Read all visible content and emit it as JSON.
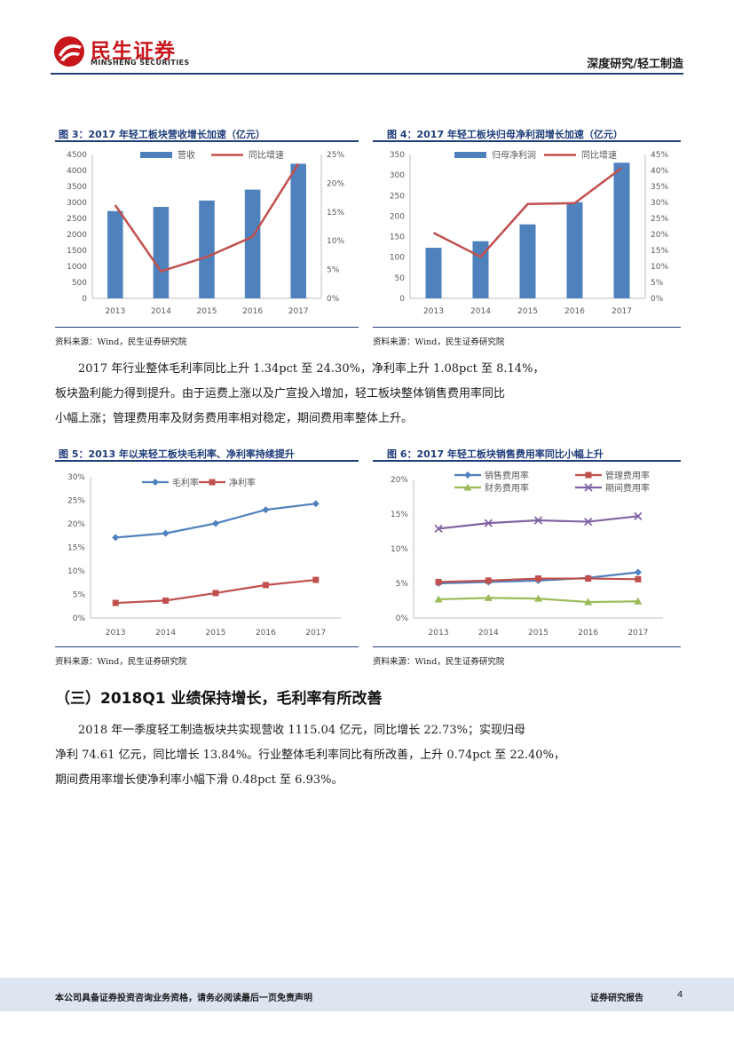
{
  "header": {
    "logo_cn": "民生证券",
    "logo_en": "MINSHENG SECURITIES",
    "section": "深度研究/轻工制造"
  },
  "figures": {
    "fig3": {
      "title": "图 3：2017 年轻工板块营收增长加速（亿元）",
      "source": "资料来源：Wind，民生证券研究院"
    },
    "fig4": {
      "title": "图 4：2017 年轻工板块归母净利润增长加速（亿元）",
      "source": "资料来源：Wind，民生证券研究院"
    },
    "fig5": {
      "title": "图 5：2013 年以来轻工板块毛利率、净利率持续提升",
      "source": "资料来源：Wind，民生证券研究院"
    },
    "fig6": {
      "title": "图 6：2017 年轻工板块销售费用率同比小幅上升",
      "source": "资料来源：Wind，民生证券研究院"
    }
  },
  "paragraph1": [
    "2017 年行业整体毛利率同比上升 1.34pct 至 24.30%，净利率上升 1.08pct 至 8.14%，",
    "板块盈利能力得到提升。由于运费上涨以及广宣投入增加，轻工板块整体销售费用率同比",
    "小幅上涨；管理费用率及财务费用率相对稳定，期间费用率整体上升。"
  ],
  "section_heading": "（三）2018Q1 业绩保持增长，毛利率有所改善",
  "paragraph2": [
    "2018 年一季度轻工制造板块共实现营收 1115.04 亿元，同比增长 22.73%；实现归母",
    "净利 74.61 亿元，同比增长 13.84%。行业整体毛利率同比有所改善，上升 0.74pct 至 22.40%，",
    "期间费用率增长使净利率小幅下滑 0.48pct 至 6.93%。"
  ],
  "footer": {
    "disclaimer": "本公司具备证券投资咨询业务资格，请务必阅读最后一页免责声明",
    "report_type": "证券研究报告",
    "page": "4"
  },
  "colors": {
    "bar": "#4f81bd",
    "line_red": "#c0504d",
    "line_blue": "#4f81bd",
    "green": "#9bbb59",
    "purple": "#8064a2",
    "brand_red": "#c8161d",
    "navy": "#1f3d7a"
  },
  "chart_data": [
    {
      "id": "fig3",
      "type": "bar+line",
      "categories": [
        "2013",
        "2014",
        "2015",
        "2016",
        "2017"
      ],
      "series": [
        {
          "name": "营收",
          "type": "bar",
          "axis": "left",
          "values": [
            2730,
            2860,
            3060,
            3400,
            4210
          ]
        },
        {
          "name": "同比增速",
          "type": "line",
          "axis": "right",
          "values": [
            16.2,
            4.7,
            7.2,
            10.7,
            23.4
          ]
        }
      ],
      "left_axis": {
        "min": 0,
        "max": 4500,
        "ticks": [
          "0",
          "500",
          "1000",
          "1500",
          "2000",
          "2500",
          "3000",
          "3500",
          "4000",
          "4500"
        ]
      },
      "right_axis": {
        "min": 0,
        "max": 25,
        "ticks": [
          "0%",
          "5%",
          "10%",
          "15%",
          "20%",
          "25%"
        ]
      },
      "legend_position": "top"
    },
    {
      "id": "fig4",
      "type": "bar+line",
      "categories": [
        "2013",
        "2014",
        "2015",
        "2016",
        "2017"
      ],
      "series": [
        {
          "name": "归母净利润",
          "type": "bar",
          "axis": "left",
          "values": [
            123,
            139,
            180,
            234,
            330
          ]
        },
        {
          "name": "同比增速",
          "type": "line",
          "axis": "right",
          "values": [
            20.5,
            13.0,
            29.5,
            29.8,
            40.8
          ]
        }
      ],
      "left_axis": {
        "min": 0,
        "max": 350,
        "ticks": [
          "0",
          "50",
          "100",
          "150",
          "200",
          "250",
          "300",
          "350"
        ]
      },
      "right_axis": {
        "min": 0,
        "max": 45,
        "ticks": [
          "0%",
          "5%",
          "10%",
          "15%",
          "20%",
          "25%",
          "30%",
          "35%",
          "40%",
          "45%"
        ]
      },
      "legend_position": "top"
    },
    {
      "id": "fig5",
      "type": "line",
      "categories": [
        "2013",
        "2014",
        "2015",
        "2016",
        "2017"
      ],
      "series": [
        {
          "name": "毛利率",
          "values": [
            17.1,
            18.0,
            20.1,
            23.0,
            24.3
          ],
          "marker": "diamond"
        },
        {
          "name": "净利率",
          "values": [
            3.2,
            3.7,
            5.3,
            7.0,
            8.1
          ],
          "marker": "square"
        }
      ],
      "y_axis": {
        "min": 0,
        "max": 30,
        "ticks": [
          "0%",
          "5%",
          "10%",
          "15%",
          "20%",
          "25%",
          "30%"
        ]
      },
      "legend_position": "top"
    },
    {
      "id": "fig6",
      "type": "line",
      "categories": [
        "2013",
        "2014",
        "2015",
        "2016",
        "2017"
      ],
      "series": [
        {
          "name": "销售费用率",
          "values": [
            5.0,
            5.2,
            5.4,
            5.8,
            6.6
          ],
          "marker": "diamond"
        },
        {
          "name": "管理费用率",
          "values": [
            5.2,
            5.4,
            5.7,
            5.7,
            5.6
          ],
          "marker": "square"
        },
        {
          "name": "财务费用率",
          "values": [
            2.7,
            2.9,
            2.8,
            2.3,
            2.4
          ],
          "marker": "triangle"
        },
        {
          "name": "期间费用率",
          "values": [
            12.9,
            13.7,
            14.1,
            13.9,
            14.7
          ],
          "marker": "x"
        }
      ],
      "y_axis": {
        "min": 0,
        "max": 20,
        "ticks": [
          "0%",
          "5%",
          "10%",
          "15%",
          "20%"
        ]
      },
      "legend_position": "top"
    }
  ]
}
